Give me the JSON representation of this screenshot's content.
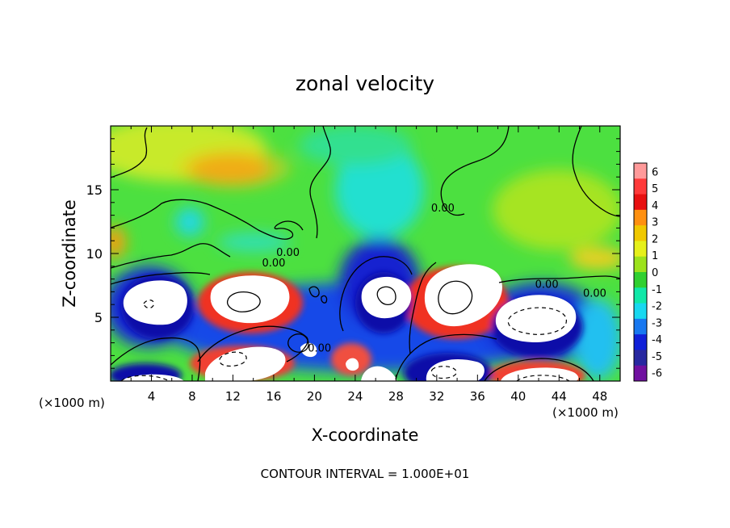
{
  "chart_data": {
    "type": "heatmap",
    "title": "zonal velocity",
    "xlabel": "X-coordinate",
    "ylabel": "Z-coordinate",
    "x_unit_left": "(×1000 m)",
    "x_unit_right": "(×1000 m)",
    "footer": "CONTOUR INTERVAL = 1.000E+01",
    "xlim": [
      0,
      50
    ],
    "ylim": [
      0,
      20
    ],
    "x_ticks": [
      4,
      8,
      12,
      16,
      20,
      24,
      28,
      32,
      36,
      40,
      44,
      48
    ],
    "y_ticks": [
      5,
      10,
      15
    ],
    "colorbar": {
      "ticks": [
        6,
        5,
        4,
        3,
        2,
        1,
        0,
        -1,
        -2,
        -3,
        -4,
        -5,
        -6
      ],
      "colors": [
        "#ff9a9a",
        "#ff3a3a",
        "#e81010",
        "#ff9010",
        "#f0c800",
        "#e6f01a",
        "#9ce21c",
        "#30d030",
        "#10e8a8",
        "#18d8f0",
        "#1878f0",
        "#1020d8",
        "#2828a0",
        "#7010a0"
      ]
    },
    "contour_labels": [
      {
        "text": "0.00",
        "x": 16,
        "y": 9
      },
      {
        "text": "0.00",
        "x": 17.4,
        "y": 9.8
      },
      {
        "text": "0.00",
        "x": 20.5,
        "y": 2.3
      },
      {
        "text": "0.00",
        "x": 32.6,
        "y": 13.3
      },
      {
        "text": "0.00",
        "x": 42.8,
        "y": 7.3
      },
      {
        "text": "0.00",
        "x": 47.5,
        "y": 6.6
      }
    ]
  }
}
